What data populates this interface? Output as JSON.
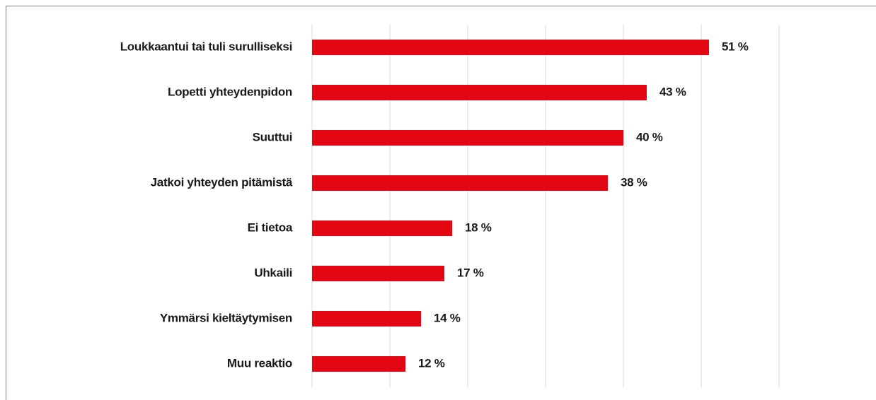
{
  "chart_data": {
    "type": "bar",
    "orientation": "horizontal",
    "categories": [
      "Loukkaantui tai tuli surulliseksi",
      "Lopetti yhteydenpidon",
      "Suuttui",
      "Jatkoi yhteyden pitämistä",
      "Ei tietoa",
      "Uhkaili",
      "Ymmärsi kieltäytymisen",
      "Muu reaktio"
    ],
    "values": [
      51,
      43,
      40,
      38,
      18,
      17,
      14,
      12
    ],
    "value_labels": [
      "51 %",
      "43 %",
      "40 %",
      "38 %",
      "18 %",
      "17 %",
      "14 %",
      "12 %"
    ],
    "color": "#e30613",
    "xlim": [
      0,
      60
    ],
    "xticks": [
      0,
      10,
      20,
      30,
      40,
      50,
      60
    ],
    "grid": true
  }
}
